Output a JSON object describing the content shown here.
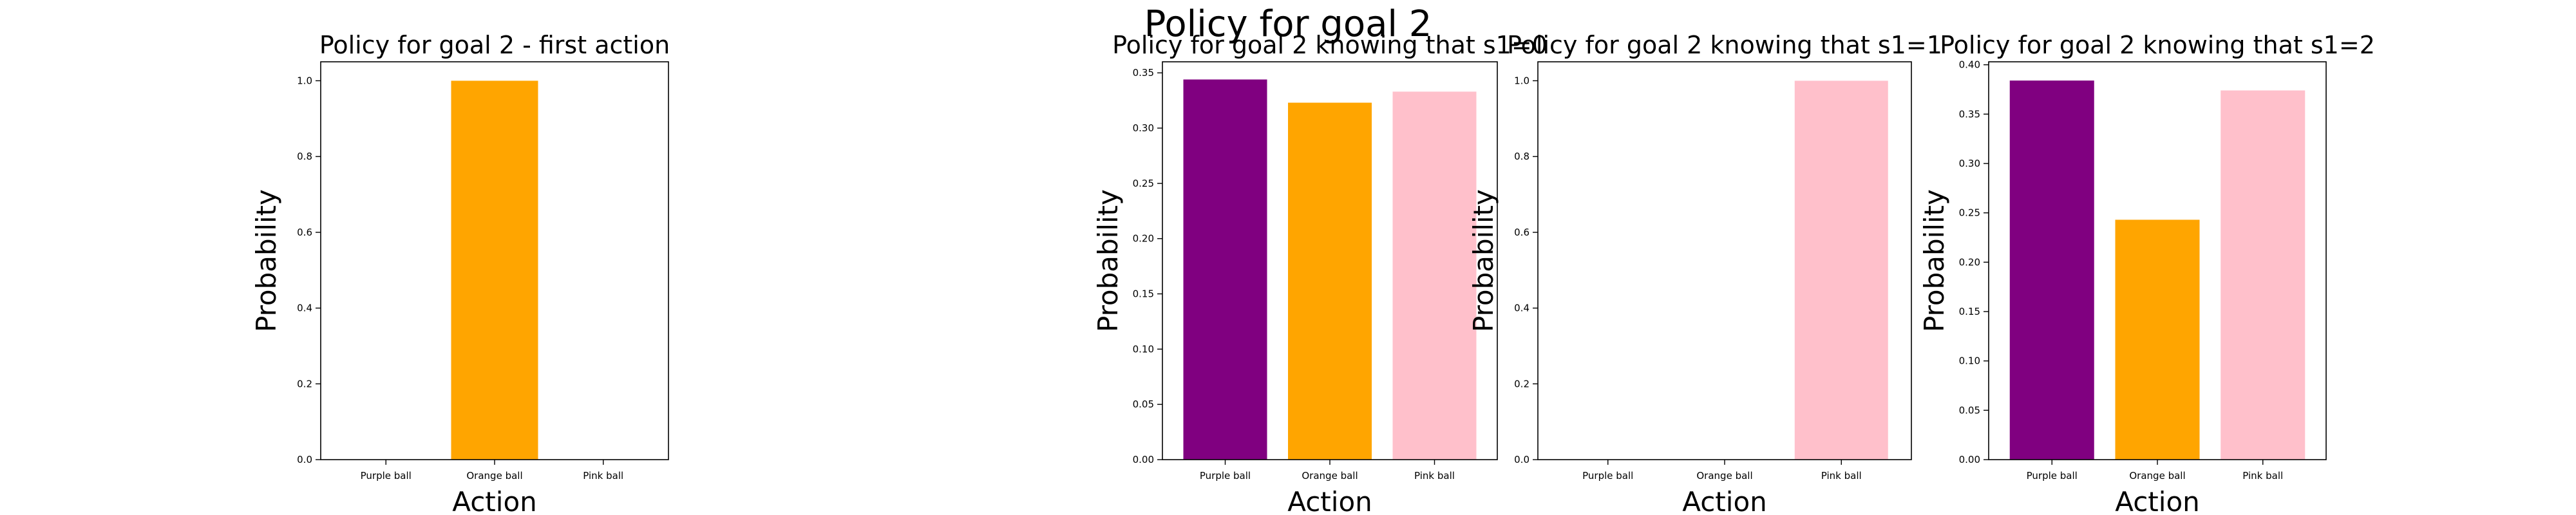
{
  "suptitle": "Policy for goal 2",
  "colors": {
    "Purple ball": "#800080",
    "Orange ball": "#FFA500",
    "Pink ball": "#FFC0CB"
  },
  "chart_data": [
    {
      "type": "bar",
      "title": "Policy for goal 2 - first action",
      "xlabel": "Action",
      "ylabel": "Probability",
      "categories": [
        "Purple ball",
        "Orange ball",
        "Pink ball"
      ],
      "values": [
        0.0,
        1.0,
        0.0
      ],
      "ylim": [
        0,
        1.05
      ],
      "yticks": [
        "0.0",
        "0.2",
        "0.4",
        "0.6",
        "0.8",
        "1.0"
      ],
      "grid": false
    },
    {
      "type": "bar",
      "title": "Policy for goal 2 knowing that s1=0",
      "xlabel": "Action",
      "ylabel": "Probability",
      "categories": [
        "Purple ball",
        "Orange ball",
        "Pink ball"
      ],
      "values": [
        0.344,
        0.323,
        0.333
      ],
      "ylim": [
        0,
        0.36
      ],
      "yticks": [
        "0.00",
        "0.05",
        "0.10",
        "0.15",
        "0.20",
        "0.25",
        "0.30",
        "0.35"
      ],
      "grid": false
    },
    {
      "type": "bar",
      "title": "Policy for goal 2 knowing that s1=1",
      "xlabel": "Action",
      "ylabel": "Probability",
      "categories": [
        "Purple ball",
        "Orange ball",
        "Pink ball"
      ],
      "values": [
        0.0,
        0.0,
        1.0
      ],
      "ylim": [
        0,
        1.05
      ],
      "yticks": [
        "0.0",
        "0.2",
        "0.4",
        "0.6",
        "0.8",
        "1.0"
      ],
      "grid": false
    },
    {
      "type": "bar",
      "title": "Policy for goal 2 knowing that s1=2",
      "xlabel": "Action",
      "ylabel": "Probability",
      "categories": [
        "Purple ball",
        "Orange ball",
        "Pink ball"
      ],
      "values": [
        0.384,
        0.243,
        0.374
      ],
      "ylim": [
        0,
        0.403
      ],
      "yticks": [
        "0.00",
        "0.05",
        "0.10",
        "0.15",
        "0.20",
        "0.25",
        "0.30",
        "0.35",
        "0.40"
      ],
      "grid": false
    }
  ]
}
